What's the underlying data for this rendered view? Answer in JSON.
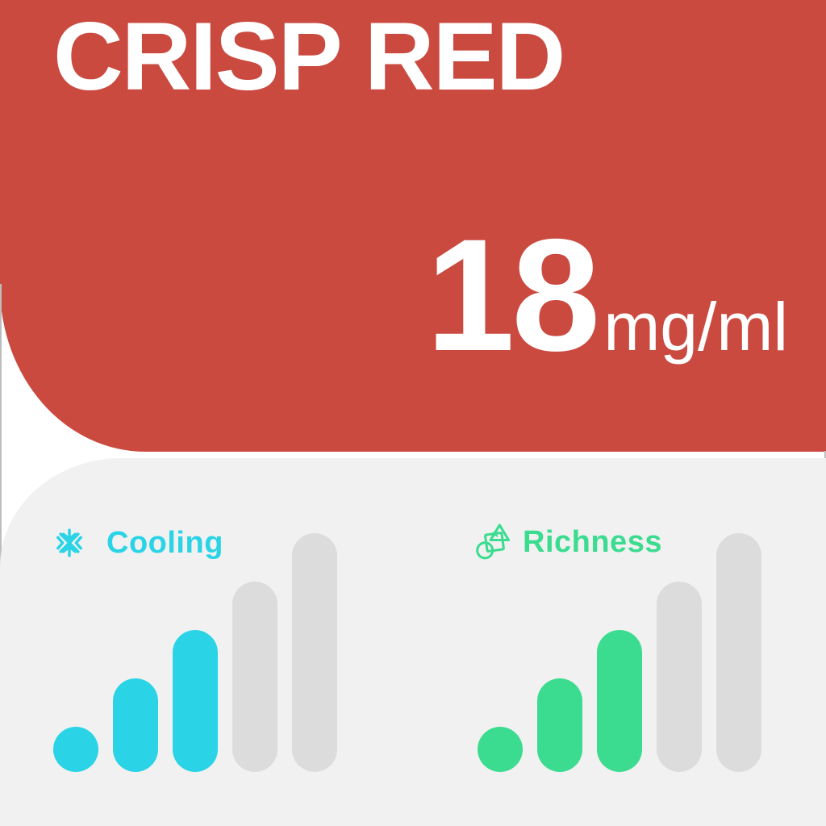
{
  "product": {
    "name": "CRISP RED",
    "strength": {
      "value": "18",
      "unit": "mg/ml"
    }
  },
  "attributes": [
    {
      "id": "cooling",
      "label": "Cooling",
      "icon": "snowflake-icon",
      "accent": "#2AD4E6",
      "level": 3,
      "max": 5
    },
    {
      "id": "richness",
      "label": "Richness",
      "icon": "shapes-icon",
      "accent": "#3CDC90",
      "level": 3,
      "max": 5
    }
  ],
  "colors": {
    "hero_background": "#CA4A40",
    "title_text": "#FFFFFF",
    "panel_background": "#F1F1F1",
    "inactive_bar": "#DCDCDC",
    "page_background": "#FFFFFF",
    "edge_line": "#BDBDBD"
  }
}
